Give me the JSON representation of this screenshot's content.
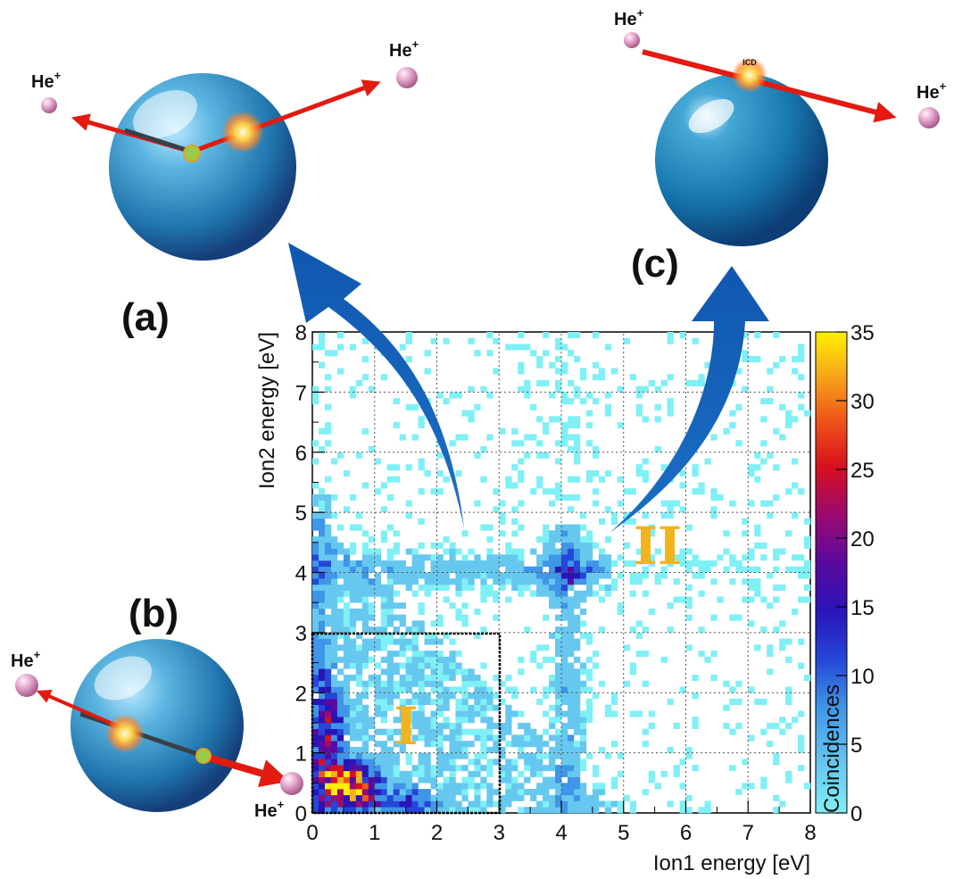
{
  "panels": {
    "a": "(a)",
    "b": "(b)",
    "c": "(c)"
  },
  "ions": {
    "label": "He",
    "charge": "+"
  },
  "icd_label": "ICD",
  "chart_data": {
    "type": "heatmap",
    "xlabel": "Ion1 energy [eV]",
    "ylabel": "Ion2 energy [eV]",
    "zlabel": "Coincidences",
    "xlim": [
      0,
      8
    ],
    "ylim": [
      0,
      8
    ],
    "zlim": [
      0,
      35
    ],
    "x_ticks": [
      "0",
      "1",
      "2",
      "3",
      "4",
      "5",
      "6",
      "7",
      "8"
    ],
    "y_ticks": [
      "0",
      "1",
      "2",
      "3",
      "4",
      "5",
      "6",
      "7",
      "8"
    ],
    "z_ticks": [
      "0",
      "5",
      "10",
      "15",
      "20",
      "25",
      "30",
      "35"
    ],
    "bin_width": 0.1,
    "grid": true,
    "colorscale": [
      "#7ff0f5",
      "#66c8ef",
      "#3f95e8",
      "#2546d8",
      "#2a14b8",
      "#5a0a9e",
      "#9a0a70",
      "#d8101e",
      "#f05818",
      "#f8b018",
      "#fff000"
    ],
    "regions": [
      {
        "label": "I",
        "x": [
          0,
          3
        ],
        "y": [
          0,
          3
        ]
      },
      {
        "label": "II",
        "x": [
          5.5
        ],
        "y": [
          4.5
        ]
      }
    ],
    "density_features": [
      {
        "name": "low-energy peak",
        "x": 0.55,
        "y": 0.45,
        "peak_counts": 35
      },
      {
        "name": "band near 4 eV",
        "x": 4.1,
        "y": 4.0,
        "peak_counts": 10
      }
    ]
  }
}
